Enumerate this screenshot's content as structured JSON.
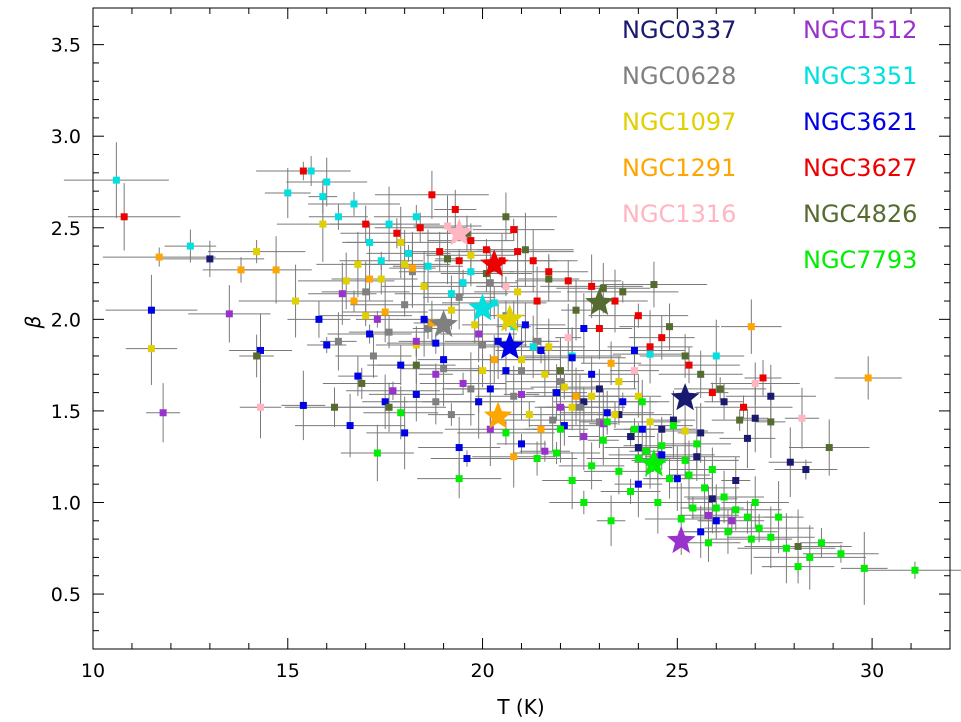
{
  "chart_data": {
    "type": "scatter",
    "xlabel": "T (K)",
    "ylabel": "β",
    "xlim": [
      10,
      32
    ],
    "ylim": [
      0.2,
      3.7
    ],
    "xticks": [
      10,
      15,
      20,
      25,
      30
    ],
    "yticks": [
      0.5,
      1.0,
      1.5,
      2.0,
      2.5,
      3.0,
      3.5
    ],
    "xtick_labels": [
      "10",
      "15",
      "20",
      "25",
      "30"
    ],
    "ytick_labels": [
      "0.5",
      "1.0",
      "1.5",
      "2.0",
      "2.5",
      "3.0",
      "3.5"
    ],
    "grid": false,
    "legend_position": "top-right",
    "series": [
      {
        "name": "NGC0337",
        "color": "#191970",
        "mean": [
          25.2,
          1.57
        ],
        "points": [
          [
            22.6,
            1.55
          ],
          [
            23.5,
            1.48
          ],
          [
            24.6,
            1.4
          ],
          [
            25.6,
            1.38
          ],
          [
            26.2,
            1.55
          ],
          [
            26.8,
            1.35
          ],
          [
            27.4,
            1.58
          ],
          [
            27.9,
            1.22
          ],
          [
            28.3,
            1.18
          ],
          [
            24.9,
            1.45
          ],
          [
            25.5,
            1.25
          ],
          [
            26.5,
            1.12
          ],
          [
            27.0,
            1.46
          ],
          [
            13.0,
            2.33
          ],
          [
            23.0,
            1.62
          ],
          [
            24.0,
            1.3
          ],
          [
            25.9,
            1.02
          ],
          [
            23.8,
            1.36
          ]
        ]
      },
      {
        "name": "NGC0628",
        "color": "#808080",
        "mean": [
          19.0,
          1.97
        ],
        "points": [
          [
            18.0,
            2.08
          ],
          [
            18.6,
            1.95
          ],
          [
            19.4,
            2.12
          ],
          [
            20.0,
            1.86
          ],
          [
            17.6,
            1.93
          ],
          [
            19.0,
            1.73
          ],
          [
            20.6,
            2.02
          ],
          [
            21.0,
            1.72
          ],
          [
            18.2,
            2.26
          ],
          [
            17.2,
            1.8
          ],
          [
            19.7,
            1.62
          ],
          [
            22.0,
            1.66
          ],
          [
            20.2,
            2.2
          ],
          [
            21.4,
            1.88
          ],
          [
            18.8,
            1.55
          ],
          [
            22.5,
            1.52
          ],
          [
            23.0,
            1.44
          ],
          [
            17.0,
            2.15
          ],
          [
            16.3,
            1.88
          ],
          [
            20.8,
            1.58
          ],
          [
            19.2,
            1.48
          ],
          [
            21.8,
            1.45
          ]
        ]
      },
      {
        "name": "NGC1097",
        "color": "#e0d000",
        "mean": [
          20.7,
          2.0
        ],
        "points": [
          [
            18.0,
            2.3
          ],
          [
            18.5,
            2.18
          ],
          [
            19.2,
            2.05
          ],
          [
            19.8,
            1.97
          ],
          [
            20.4,
            1.88
          ],
          [
            21.0,
            1.78
          ],
          [
            21.6,
            1.7
          ],
          [
            22.1,
            1.63
          ],
          [
            22.8,
            1.58
          ],
          [
            23.5,
            1.66
          ],
          [
            17.4,
            2.22
          ],
          [
            16.8,
            2.3
          ],
          [
            15.9,
            2.52
          ],
          [
            14.2,
            2.37
          ],
          [
            15.2,
            2.1
          ],
          [
            17.0,
            2.02
          ],
          [
            18.3,
            1.86
          ],
          [
            20.0,
            1.72
          ],
          [
            21.2,
            1.48
          ],
          [
            22.3,
            1.52
          ],
          [
            23.4,
            1.48
          ],
          [
            24.3,
            1.44
          ],
          [
            25.2,
            1.39
          ],
          [
            11.5,
            1.84
          ],
          [
            19.7,
            2.35
          ],
          [
            20.9,
            2.15
          ],
          [
            17.9,
            2.42
          ],
          [
            16.5,
            2.21
          ],
          [
            21.7,
            1.85
          ],
          [
            24.0,
            1.58
          ]
        ]
      },
      {
        "name": "NGC1291",
        "color": "#ffa500",
        "mean": [
          20.4,
          1.47
        ],
        "points": [
          [
            11.7,
            2.34
          ],
          [
            13.8,
            2.27
          ],
          [
            14.7,
            2.27
          ],
          [
            16.7,
            2.1
          ],
          [
            17.5,
            2.04
          ],
          [
            18.7,
            1.98
          ],
          [
            19.9,
            1.55
          ],
          [
            20.8,
            1.25
          ],
          [
            26.9,
            1.96
          ],
          [
            29.9,
            1.68
          ],
          [
            20.3,
            1.78
          ],
          [
            22.4,
            1.58
          ],
          [
            23.3,
            1.76
          ],
          [
            17.1,
            2.22
          ],
          [
            18.2,
            2.28
          ],
          [
            21.5,
            1.4
          ]
        ]
      },
      {
        "name": "NGC1316",
        "color": "#ffb6c1",
        "mean": [
          19.4,
          2.47
        ],
        "points": [
          [
            14.3,
            1.52
          ],
          [
            19.1,
            2.51
          ],
          [
            21.3,
            1.85
          ],
          [
            22.2,
            1.9
          ],
          [
            27.0,
            1.65
          ],
          [
            28.2,
            1.46
          ],
          [
            20.6,
            2.18
          ],
          [
            23.9,
            1.72
          ]
        ]
      },
      {
        "name": "NGC1512",
        "color": "#9932cc",
        "mean": [
          25.1,
          0.79
        ],
        "points": [
          [
            11.8,
            1.49
          ],
          [
            13.5,
            2.03
          ],
          [
            16.4,
            2.14
          ],
          [
            17.3,
            2.0
          ],
          [
            18.8,
            1.7
          ],
          [
            19.5,
            1.65
          ],
          [
            20.2,
            1.4
          ],
          [
            21.0,
            1.59
          ],
          [
            22.0,
            1.52
          ],
          [
            23.1,
            1.43
          ],
          [
            24.5,
            1.25
          ],
          [
            25.8,
            0.93
          ],
          [
            26.4,
            0.9
          ],
          [
            18.3,
            1.88
          ],
          [
            19.9,
            1.92
          ],
          [
            21.6,
            1.28
          ],
          [
            17.7,
            1.61
          ],
          [
            22.6,
            1.36
          ]
        ]
      },
      {
        "name": "NGC3351",
        "color": "#00e0e0",
        "mean": [
          20.0,
          2.06
        ],
        "points": [
          [
            10.6,
            2.76
          ],
          [
            12.5,
            2.4
          ],
          [
            15.0,
            2.69
          ],
          [
            15.6,
            2.81
          ],
          [
            15.9,
            2.67
          ],
          [
            16.3,
            2.56
          ],
          [
            16.7,
            2.63
          ],
          [
            17.1,
            2.42
          ],
          [
            17.6,
            2.52
          ],
          [
            18.1,
            2.36
          ],
          [
            18.6,
            2.29
          ],
          [
            19.2,
            2.14
          ],
          [
            19.7,
            2.26
          ],
          [
            20.3,
            2.09
          ],
          [
            20.8,
            1.96
          ],
          [
            21.3,
            1.85
          ],
          [
            22.3,
            1.8
          ],
          [
            24.3,
            1.81
          ],
          [
            26.0,
            1.8
          ],
          [
            16.0,
            2.75
          ],
          [
            17.4,
            2.32
          ],
          [
            18.3,
            2.56
          ],
          [
            19.5,
            2.2
          ]
        ]
      },
      {
        "name": "NGC3621",
        "color": "#0000e6",
        "mean": [
          20.7,
          1.85
        ],
        "points": [
          [
            11.5,
            2.05
          ],
          [
            14.3,
            1.83
          ],
          [
            15.4,
            1.53
          ],
          [
            16.0,
            1.86
          ],
          [
            16.6,
            1.42
          ],
          [
            17.1,
            1.92
          ],
          [
            17.5,
            1.55
          ],
          [
            18.0,
            1.38
          ],
          [
            18.5,
            2.0
          ],
          [
            19.0,
            1.78
          ],
          [
            19.4,
            1.3
          ],
          [
            19.6,
            1.24
          ],
          [
            20.2,
            1.62
          ],
          [
            20.6,
            1.72
          ],
          [
            21.1,
            1.97
          ],
          [
            21.5,
            1.83
          ],
          [
            21.9,
            1.6
          ],
          [
            22.3,
            1.79
          ],
          [
            22.8,
            1.7
          ],
          [
            23.2,
            1.49
          ],
          [
            23.6,
            1.55
          ],
          [
            24.1,
            1.4
          ],
          [
            24.6,
            1.26
          ],
          [
            25.0,
            1.13
          ],
          [
            25.6,
            0.84
          ],
          [
            26.0,
            0.9
          ],
          [
            15.8,
            2.0
          ],
          [
            16.8,
            1.69
          ],
          [
            18.8,
            1.87
          ],
          [
            20.4,
            1.88
          ],
          [
            22.1,
            1.42
          ],
          [
            24.0,
            1.1
          ],
          [
            21.0,
            1.32
          ],
          [
            19.9,
            1.55
          ],
          [
            22.6,
            1.95
          ],
          [
            23.9,
            1.83
          ],
          [
            17.9,
            1.75
          ],
          [
            18.3,
            1.59
          ]
        ]
      },
      {
        "name": "NGC3627",
        "color": "#ee0000",
        "mean": [
          20.3,
          2.3
        ],
        "points": [
          [
            10.8,
            2.56
          ],
          [
            15.4,
            2.81
          ],
          [
            17.0,
            2.52
          ],
          [
            17.8,
            2.47
          ],
          [
            18.4,
            2.5
          ],
          [
            18.9,
            2.37
          ],
          [
            19.3,
            2.6
          ],
          [
            19.7,
            2.43
          ],
          [
            20.1,
            2.38
          ],
          [
            20.5,
            2.32
          ],
          [
            20.9,
            2.37
          ],
          [
            21.3,
            2.32
          ],
          [
            21.7,
            2.26
          ],
          [
            22.2,
            2.21
          ],
          [
            22.8,
            2.18
          ],
          [
            23.4,
            2.1
          ],
          [
            24.0,
            2.02
          ],
          [
            24.6,
            1.9
          ],
          [
            25.3,
            1.75
          ],
          [
            25.9,
            1.6
          ],
          [
            26.7,
            1.52
          ],
          [
            27.2,
            1.68
          ],
          [
            18.7,
            2.68
          ],
          [
            19.4,
            2.32
          ],
          [
            20.8,
            2.49
          ],
          [
            21.4,
            2.1
          ],
          [
            23.0,
            1.95
          ],
          [
            24.3,
            1.85
          ]
        ]
      },
      {
        "name": "NGC4826",
        "color": "#556b2f",
        "mean": [
          23.0,
          2.09
        ],
        "points": [
          [
            14.2,
            1.8
          ],
          [
            16.2,
            1.52
          ],
          [
            16.9,
            1.65
          ],
          [
            17.6,
            1.52
          ],
          [
            18.3,
            1.75
          ],
          [
            19.6,
            2.47
          ],
          [
            20.6,
            2.56
          ],
          [
            21.1,
            2.38
          ],
          [
            21.7,
            2.22
          ],
          [
            22.4,
            2.05
          ],
          [
            23.1,
            2.17
          ],
          [
            23.6,
            2.15
          ],
          [
            24.4,
            2.19
          ],
          [
            24.8,
            1.96
          ],
          [
            25.2,
            1.8
          ],
          [
            26.1,
            1.62
          ],
          [
            26.6,
            1.45
          ],
          [
            27.4,
            1.44
          ],
          [
            28.1,
            0.76
          ],
          [
            28.9,
            1.3
          ],
          [
            22.0,
            1.72
          ],
          [
            20.1,
            2.25
          ],
          [
            19.1,
            2.33
          ],
          [
            25.6,
            1.7
          ]
        ]
      },
      {
        "name": "NGC7793",
        "color": "#00ee00",
        "mean": [
          24.4,
          1.21
        ],
        "points": [
          [
            17.9,
            1.49
          ],
          [
            20.6,
            1.38
          ],
          [
            21.4,
            1.24
          ],
          [
            21.9,
            1.27
          ],
          [
            22.3,
            1.12
          ],
          [
            22.8,
            1.2
          ],
          [
            22.6,
            1.0
          ],
          [
            23.1,
            1.34
          ],
          [
            23.5,
            1.17
          ],
          [
            23.2,
            1.44
          ],
          [
            23.9,
            1.4
          ],
          [
            24.2,
            1.28
          ],
          [
            23.8,
            1.06
          ],
          [
            24.3,
            1.22
          ],
          [
            24.6,
            1.31
          ],
          [
            24.9,
            1.42
          ],
          [
            24.1,
            1.55
          ],
          [
            24.8,
            1.13
          ],
          [
            25.2,
            1.23
          ],
          [
            25.5,
            1.32
          ],
          [
            25.7,
            1.08
          ],
          [
            25.4,
            0.97
          ],
          [
            25.9,
            1.18
          ],
          [
            26.2,
            1.03
          ],
          [
            26.5,
            0.96
          ],
          [
            26.8,
            0.92
          ],
          [
            27.1,
            0.86
          ],
          [
            27.0,
            1.0
          ],
          [
            27.4,
            0.81
          ],
          [
            27.8,
            0.75
          ],
          [
            28.1,
            0.65
          ],
          [
            28.7,
            0.78
          ],
          [
            29.2,
            0.72
          ],
          [
            29.8,
            0.64
          ],
          [
            31.1,
            0.63
          ],
          [
            25.1,
            0.91
          ],
          [
            24.5,
            1.0
          ],
          [
            26.3,
            0.84
          ],
          [
            27.6,
            0.92
          ],
          [
            28.4,
            0.7
          ],
          [
            26.9,
            0.8
          ],
          [
            25.8,
            0.78
          ],
          [
            19.4,
            1.13
          ],
          [
            17.3,
            1.27
          ],
          [
            23.3,
            0.9
          ],
          [
            22.0,
            1.4
          ],
          [
            24.0,
            1.24
          ],
          [
            25.3,
            1.15
          ],
          [
            26.0,
            0.97
          ]
        ]
      }
    ]
  }
}
